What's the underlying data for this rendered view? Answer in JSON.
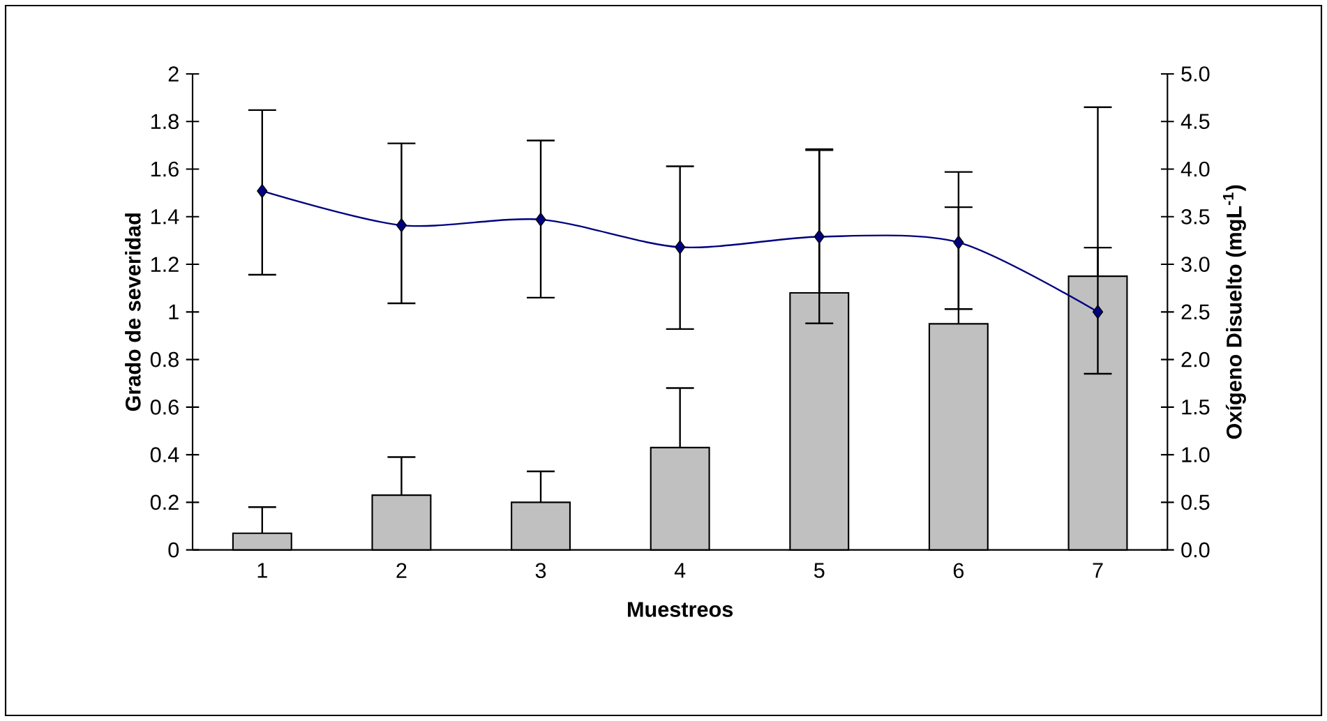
{
  "chart_data": {
    "type": "bar",
    "xlabel": "Muestreos",
    "ylabel": "Grado de severidad",
    "y2label": "Oxígeno Disuelto (mgL$^{-1}$)",
    "categories": [
      "1",
      "2",
      "3",
      "4",
      "5",
      "6",
      "7"
    ],
    "ylim": [
      0,
      2
    ],
    "yticks": [
      0,
      0.2,
      0.4,
      0.6,
      0.8,
      1,
      1.2,
      1.4,
      1.6,
      1.8,
      2
    ],
    "y2lim": [
      0,
      5
    ],
    "y2ticks": [
      {
        "value": 0,
        "label": "0.0"
      },
      {
        "value": 0.5,
        "label": "0.5"
      },
      {
        "value": 1,
        "label": "1.0"
      },
      {
        "value": 1.5,
        "label": "1.5"
      },
      {
        "value": 2,
        "label": "2.0"
      },
      {
        "value": 2.5,
        "label": "2.5"
      },
      {
        "value": 3,
        "label": "3.0"
      },
      {
        "value": 3.5,
        "label": "3.5"
      },
      {
        "value": 4,
        "label": "4.0"
      },
      {
        "value": 4.5,
        "label": "4.5"
      },
      {
        "value": 5,
        "label": "5.0"
      }
    ],
    "grid": false,
    "series": [
      {
        "color": "#c0c0c0",
        "values": [
          0.07,
          0.23,
          0.2,
          0.43,
          1.08,
          0.95,
          1.15
        ],
        "errors": [
          [
            0.07,
            0.18
          ],
          [
            0.23,
            0.39
          ],
          [
            0.2,
            0.33
          ],
          [
            0.43,
            0.68
          ],
          [
            1.08,
            1.68
          ],
          [
            0.95,
            1.44
          ],
          [
            1.15,
            1.27
          ]
        ]
      },
      {
        "type": "line",
        "axis": "y2",
        "color": "#000080",
        "marker": "diamond",
        "line_style": "solid",
        "values": [
          3.77,
          3.41,
          3.47,
          3.18,
          3.29,
          3.23,
          2.5
        ],
        "errors": [
          [
            2.89,
            4.62
          ],
          [
            2.59,
            4.27
          ],
          [
            2.65,
            4.3
          ],
          [
            2.32,
            4.03
          ],
          [
            2.38,
            4.21
          ],
          [
            2.53,
            3.97
          ],
          [
            1.85,
            4.65
          ]
        ]
      }
    ]
  }
}
